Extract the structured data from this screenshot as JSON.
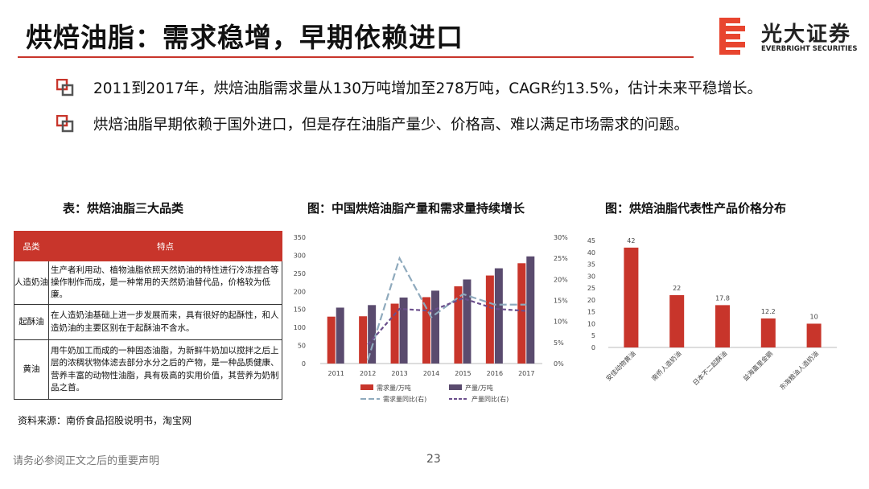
{
  "page": {
    "title": "烘焙油脂：需求稳增，早期依赖进口",
    "logo_text": "光大证券",
    "logo_sub": "EVERBRIGHT SECURITIES",
    "bullets": [
      "2011到2017年，烘焙油脂需求量从130万吨增加至278万吨，CAGR约13.5%，估计未来平稳增长。",
      "烘焙油脂早期依赖于国外进口，但是存在油脂产量少、价格高、难以满足市场需求的问题。"
    ],
    "footer": "请务必参阅正文之后的重要声明",
    "page_number": "23",
    "accent_color": "#c8352b",
    "icon": "bullet-square-icon"
  },
  "table": {
    "title": "表：烘焙油脂三大品类",
    "headers": [
      "品类",
      "特点"
    ],
    "rows": [
      {
        "name": "人造奶油",
        "desc": "生产者利用动、植物油脂依照天然奶油的特性进行冷冻捏合等操作制作而成，是一种常用的天然奶油替代品，价格较为低廉。"
      },
      {
        "name": "起酥油",
        "desc": "在人造奶油基础上进一步发展而来，具有很好的起酥性，和人造奶油的主要区别在于起酥油不含水。"
      },
      {
        "name": "黄油",
        "desc": "用牛奶加工而成的一种固态油脂，为新鲜牛奶加以搅拌之后上层的浓稠状物体滤去部分水分之后的产物，是一种品质健康、营养丰富的动物性油脂，具有极高的实用价值，其营养为奶制品之首。"
      }
    ],
    "source": "资料来源：南侨食品招股说明书，淘宝网"
  },
  "chart_data": [
    {
      "type": "bar",
      "title": "图：中国烘焙油脂产量和需求量持续增长",
      "categories": [
        "2011",
        "2012",
        "2013",
        "2014",
        "2015",
        "2016",
        "2017"
      ],
      "ylim": [
        0,
        350
      ],
      "y_ticks": [
        "0",
        "50",
        "100",
        "150",
        "200",
        "250",
        "300",
        "350"
      ],
      "y2lim": [
        0,
        0.3
      ],
      "y2_ticks": [
        "0%",
        "5%",
        "10%",
        "15%",
        "20%",
        "25%",
        "30%"
      ],
      "series": [
        {
          "name": "需求量/万吨",
          "type": "bar",
          "color": "#c8352b",
          "values": [
            130,
            131,
            166,
            184,
            214,
            244,
            278
          ]
        },
        {
          "name": "产量/万吨",
          "type": "bar",
          "color": "#5a4b6e",
          "values": [
            155,
            162,
            183,
            202,
            233,
            264,
            297
          ]
        },
        {
          "name": "需求量同比(右)",
          "type": "line",
          "axis": "right",
          "color": "#8faabd",
          "dash": "long",
          "values": [
            null,
            0.008,
            0.25,
            0.11,
            0.165,
            0.14,
            0.14
          ]
        },
        {
          "name": "产量同比(右)",
          "type": "line",
          "axis": "right",
          "color": "#6b4f8c",
          "dash": "short",
          "values": [
            null,
            0.045,
            0.13,
            0.125,
            0.155,
            0.13,
            0.125
          ]
        }
      ],
      "legend": "bottom"
    },
    {
      "type": "bar",
      "title": "图：烘焙油脂代表性产品价格分布",
      "categories": [
        "安佳动物黄油",
        "南侨人造奶油",
        "日本不二起酥油",
        "益海嘉里金鹂",
        "东海粮油人造奶油"
      ],
      "values": [
        42,
        22,
        17.8,
        12.2,
        10
      ],
      "data_labels": [
        "42",
        "22",
        "17.8",
        "12.2",
        "10"
      ],
      "ylim": [
        0,
        45
      ],
      "y_ticks": [
        "0",
        "5",
        "10",
        "15",
        "20",
        "25",
        "30",
        "35",
        "40",
        "45"
      ],
      "color": "#c8352b"
    }
  ]
}
